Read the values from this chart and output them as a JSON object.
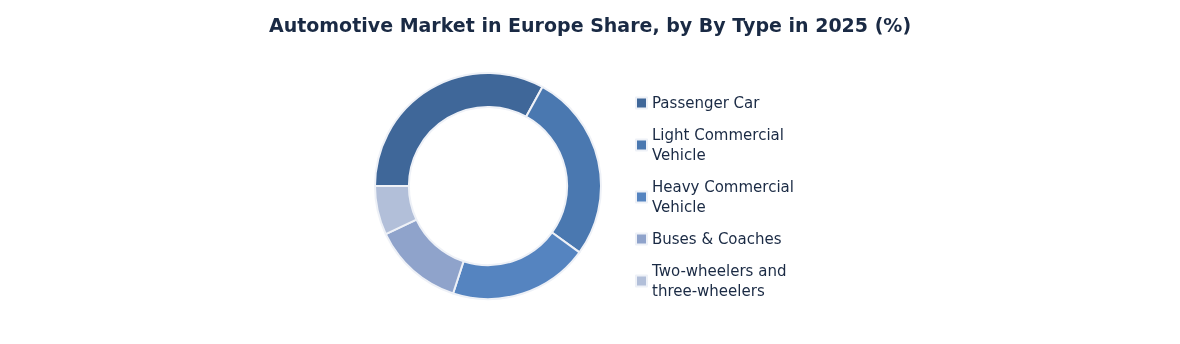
{
  "chart_data": {
    "type": "donut",
    "title": "Automotive Market in Europe Share, by By Type in 2025 (%)",
    "categories": [
      "Passenger Car",
      "Light Commercial Vehicle",
      "Heavy Commercial Vehicle",
      "Buses & Coaches",
      "Two-wheelers and three-wheelers"
    ],
    "values": [
      33,
      27,
      20,
      13,
      7
    ],
    "colors": [
      "#3f6799",
      "#4a78b0",
      "#5584c0",
      "#8fa3cb",
      "#b2bfd9"
    ],
    "legend": "right"
  }
}
